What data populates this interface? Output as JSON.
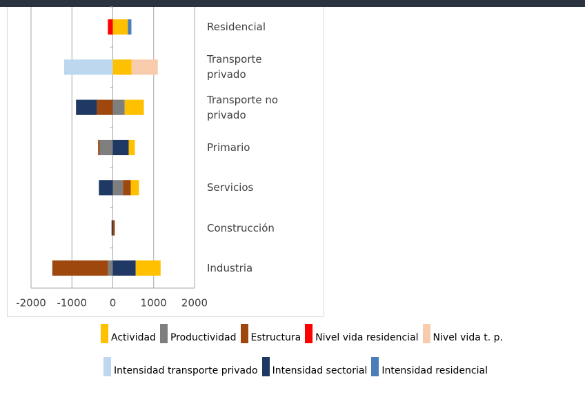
{
  "chart_data": {
    "type": "bar",
    "orientation": "horizontal",
    "stacked": true,
    "categories": [
      "Residencial",
      "Transporte privado",
      "Transporte no privado",
      "Primario",
      "Servicios",
      "Construcción",
      "Industria"
    ],
    "series": [
      {
        "name": "Actividad",
        "color": "#ffc000",
        "values": [
          370,
          460,
          470,
          150,
          200,
          0,
          610
        ]
      },
      {
        "name": "Productividad",
        "color": "#7f7f7f",
        "values": [
          0,
          0,
          290,
          -320,
          250,
          0,
          -120
        ]
      },
      {
        "name": "Estructura",
        "color": "#9e480e",
        "values": [
          0,
          0,
          -390,
          -40,
          190,
          50,
          -1360
        ]
      },
      {
        "name": "Nivel vida residencial",
        "color": "#ff0000",
        "values": [
          -120,
          0,
          0,
          0,
          0,
          0,
          0
        ]
      },
      {
        "name": "Nivel vida t. p.",
        "color": "#f8cbad",
        "values": [
          0,
          640,
          0,
          0,
          0,
          0,
          0
        ]
      },
      {
        "name": "Intensidad transporte privado",
        "color": "#bdd7ee",
        "values": [
          0,
          -1190,
          0,
          0,
          0,
          0,
          0
        ]
      },
      {
        "name": "Intensidad sectorial",
        "color": "#1f3864",
        "values": [
          0,
          0,
          -510,
          390,
          -340,
          -30,
          560
        ]
      },
      {
        "name": "Intensidad residencial",
        "color": "#4a7ebb",
        "values": [
          85,
          0,
          0,
          0,
          0,
          0,
          0
        ]
      }
    ],
    "xlim": [
      -2000,
      2000
    ],
    "xticks": [
      -2000,
      -1000,
      0,
      1000,
      2000
    ],
    "grid": true
  }
}
